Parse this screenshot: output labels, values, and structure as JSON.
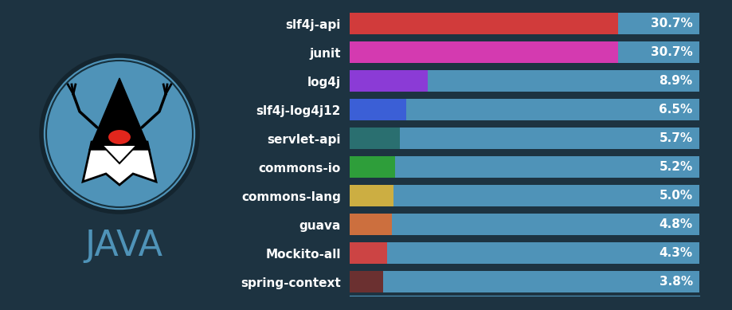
{
  "chart_data": {
    "type": "bar",
    "orientation": "horizontal",
    "categories": [
      "slf4j-api",
      "junit",
      "log4j",
      "slf4j-log4j12",
      "servlet-api",
      "commons-io",
      "commons-lang",
      "guava",
      "Mockito-all",
      "spring-context"
    ],
    "values": [
      30.7,
      30.7,
      8.9,
      6.5,
      5.7,
      5.2,
      5.0,
      4.8,
      4.3,
      3.8
    ],
    "value_labels": [
      "30.7%",
      "30.7%",
      "8.9%",
      "6.5%",
      "5.7%",
      "5.2%",
      "5.0%",
      "4.8%",
      "4.3%",
      "3.8%"
    ],
    "colors": [
      "#d13b3b",
      "#d43ab0",
      "#8b3bd6",
      "#3b5fd6",
      "#2a6f70",
      "#2e9e3a",
      "#ccae42",
      "#cc6f3e",
      "#cc4444",
      "#6b3030"
    ],
    "xlim": [
      0,
      40
    ],
    "xticks": [
      0,
      10,
      20,
      30,
      40
    ],
    "tick_labels": false,
    "data_labels": true,
    "annotations": [
      "JAVA"
    ]
  }
}
